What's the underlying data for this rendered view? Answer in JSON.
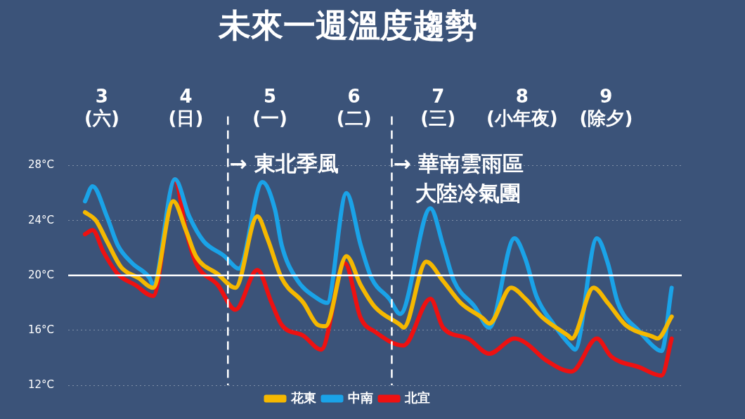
{
  "chart_data": {
    "type": "line",
    "title": "未來一週溫度趨勢",
    "xlim": [
      2.6,
      9.9
    ],
    "xticks": [
      {
        "value": 3,
        "label": "3\n(六)"
      },
      {
        "value": 4,
        "label": "4\n(日)"
      },
      {
        "value": 5,
        "label": "5\n(一)"
      },
      {
        "value": 6,
        "label": "6\n(二)"
      },
      {
        "value": 7,
        "label": "7\n(三)"
      },
      {
        "value": 8,
        "label": "8\n(小年夜)"
      },
      {
        "value": 9,
        "label": "9\n(除夕)"
      }
    ],
    "ylim": [
      12,
      28
    ],
    "yticks": [
      {
        "value": 12,
        "label": "12°C"
      },
      {
        "value": 16,
        "label": "16°C"
      },
      {
        "value": 20,
        "label": "20°C"
      },
      {
        "value": 24,
        "label": "24°C"
      },
      {
        "value": 28,
        "label": "28°C"
      }
    ],
    "grid": "y",
    "legend": "bottom",
    "marker": "none",
    "line_style": "solid",
    "series": [
      {
        "name": "花東",
        "color": "#f5b800",
        "x": [
          2.8,
          2.93,
          3.06,
          3.23,
          3.44,
          3.61,
          3.85,
          4.0,
          4.12,
          4.38,
          4.59,
          4.85,
          4.97,
          5.14,
          5.4,
          5.57,
          5.66,
          5.91,
          6.08,
          6.25,
          6.55,
          6.59,
          6.86,
          7.06,
          7.27,
          7.53,
          7.61,
          7.87,
          8.04,
          8.25,
          8.55,
          8.59,
          8.85,
          9.02,
          9.23,
          9.57,
          9.61,
          9.78
        ],
        "values": [
          24.6,
          24,
          22.5,
          20.6,
          19.8,
          19.1,
          25.4,
          23.3,
          21.4,
          20.1,
          19.1,
          24.3,
          22.7,
          19.8,
          18,
          16.4,
          16.3,
          21.4,
          19.3,
          17.7,
          16.4,
          16.2,
          21,
          19.6,
          18,
          16.9,
          16.5,
          19.1,
          18.3,
          16.9,
          15.6,
          15.4,
          19.1,
          18,
          16.4,
          15.5,
          15.4,
          17
        ]
      },
      {
        "name": "中南",
        "color": "#1aa3e8",
        "x": [
          2.8,
          2.89,
          3.06,
          3.19,
          3.36,
          3.57,
          3.61,
          3.87,
          4.04,
          4.21,
          4.46,
          4.59,
          4.63,
          4.91,
          5.06,
          5.14,
          5.31,
          5.57,
          5.68,
          5.91,
          6.08,
          6.21,
          6.42,
          6.55,
          6.91,
          7.06,
          7.19,
          7.44,
          7.61,
          7.91,
          8.04,
          8.17,
          8.38,
          8.59,
          8.63,
          8.89,
          9.02,
          9.14,
          9.4,
          9.61,
          9.66,
          9.78
        ],
        "values": [
          25.4,
          26.5,
          24.3,
          22.2,
          20.9,
          19.8,
          19.3,
          27,
          24.3,
          22.5,
          21.4,
          20.6,
          20.5,
          26.8,
          24.8,
          22.2,
          19.8,
          18.3,
          18,
          26,
          22.2,
          19.8,
          18.3,
          17.2,
          24.9,
          22.2,
          19.6,
          17.7,
          16.2,
          22.7,
          21.2,
          18.5,
          16.4,
          14.8,
          14.6,
          22.7,
          20.9,
          18,
          15.9,
          14.6,
          14.5,
          19.1
        ]
      },
      {
        "name": "北宜",
        "color": "#ee1111",
        "x": [
          2.8,
          2.89,
          3.02,
          3.19,
          3.4,
          3.61,
          3.87,
          4.0,
          4.12,
          4.38,
          4.59,
          4.85,
          5.02,
          5.14,
          5.4,
          5.61,
          5.89,
          6.08,
          6.25,
          6.59,
          6.91,
          7.06,
          7.36,
          7.61,
          7.91,
          8.04,
          8.29,
          8.59,
          8.89,
          9.06,
          9.4,
          9.66,
          9.78
        ],
        "values": [
          23,
          23.3,
          21.7,
          20.1,
          19.3,
          18.5,
          27,
          23.3,
          20.9,
          19.3,
          17.5,
          20.4,
          18,
          16.4,
          15.6,
          14.6,
          20.9,
          16.9,
          15.9,
          14.9,
          18.3,
          16.2,
          15.4,
          14.3,
          15.4,
          15.1,
          13.8,
          13,
          15.4,
          14.1,
          13.3,
          12.7,
          15.4
        ]
      }
    ],
    "ref_lines": [
      {
        "axis": "x",
        "value": 4.5,
        "color": "#ffffff",
        "line_style": "dashed"
      },
      {
        "axis": "x",
        "value": 6.45,
        "color": "#ffffff",
        "line_style": "dashed"
      },
      {
        "axis": "y",
        "value": 20,
        "color": "#ffffff",
        "line_style": "solid"
      }
    ],
    "annotations": [
      {
        "text": "→ 東北季風",
        "x": 4.5,
        "y": 28
      },
      {
        "text": "→ 華南雲雨區",
        "x": 6.45,
        "y": 28
      },
      "大陸冷氣團"
    ]
  }
}
